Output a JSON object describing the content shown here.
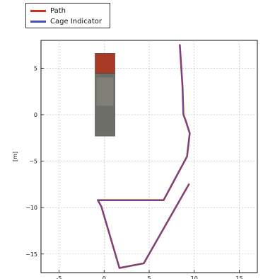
{
  "chart_data": {
    "type": "line",
    "title": "",
    "xlabel": "",
    "ylabel": "[m]",
    "xlim": [
      -7,
      17
    ],
    "ylim": [
      -17,
      8
    ],
    "xticks": [
      -5,
      0,
      5,
      10,
      15
    ],
    "yticks": [
      5,
      0,
      -5,
      -10,
      -15
    ],
    "xtick_labels": [
      "-5",
      "0",
      "5",
      "10",
      "15"
    ],
    "ytick_labels": [
      "5",
      "0",
      "−5",
      "−10",
      "−15"
    ],
    "grid": true,
    "legend_position": "above-top-left",
    "series": [
      {
        "name": "Path",
        "color": "#cc3322",
        "x": [
          8.4,
          8.7,
          8.8,
          9.0,
          9.5,
          9.2,
          6.6,
          -0.7,
          -0.3,
          1.7,
          4.4,
          9.4
        ],
        "y": [
          7.5,
          3.0,
          0.0,
          -0.5,
          -2.0,
          -4.5,
          -9.2,
          -9.2,
          -9.9,
          -16.5,
          -16.0,
          -7.5
        ]
      },
      {
        "name": "Cage Indicator",
        "color": "#4b4fb5",
        "x": [
          8.4,
          8.7,
          8.8,
          9.0,
          9.5,
          9.2,
          6.6,
          -0.7,
          -0.3,
          1.7,
          4.4,
          9.4
        ],
        "y": [
          7.5,
          3.0,
          0.0,
          -0.5,
          -2.0,
          -4.5,
          -9.2,
          -9.2,
          -9.9,
          -16.5,
          -16.0,
          -7.5
        ]
      }
    ],
    "vehicle": {
      "x_range": [
        -1.0,
        1.2
      ],
      "y_range": [
        -2.3,
        6.6
      ],
      "front_color": "#a83a26",
      "body_color": "#6e6e68"
    }
  }
}
